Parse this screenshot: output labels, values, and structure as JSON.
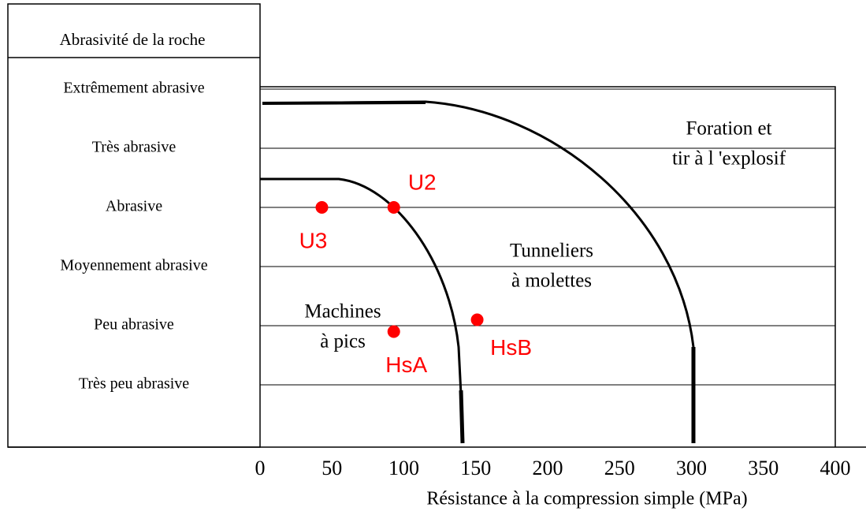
{
  "chart_data": {
    "type": "scatter",
    "xlabel": "Résistance à la compression simple (MPa)",
    "ylabel": "Abrasivité de la roche",
    "xlim": [
      0,
      400
    ],
    "xticks": [
      0,
      50,
      100,
      150,
      200,
      250,
      300,
      350,
      400
    ],
    "ylim": [
      0,
      6
    ],
    "yticks": [
      {
        "value": 1,
        "label": "Très peu abrasive"
      },
      {
        "value": 2,
        "label": "Peu abrasive"
      },
      {
        "value": 3,
        "label": "Moyennement abrasive"
      },
      {
        "value": 4,
        "label": "Abrasive"
      },
      {
        "value": 5,
        "label": "Très abrasive"
      },
      {
        "value": 6,
        "label": "Extrêmement abrasive"
      }
    ],
    "grid": true,
    "series": [
      {
        "color": "#ff0000",
        "labels": [
          "U3",
          "U2",
          "HsA",
          "HsB"
        ],
        "x": [
          43,
          93,
          93,
          151
        ],
        "values": [
          4,
          4,
          1.9,
          2.1
        ]
      }
    ],
    "annotations": [
      {
        "lines": [
          "Foration et",
          "tir à l 'explosif"
        ]
      },
      {
        "lines": [
          "Tunneliers",
          "à molettes"
        ]
      },
      {
        "lines": [
          "Machines",
          "à pics"
        ]
      }
    ]
  }
}
